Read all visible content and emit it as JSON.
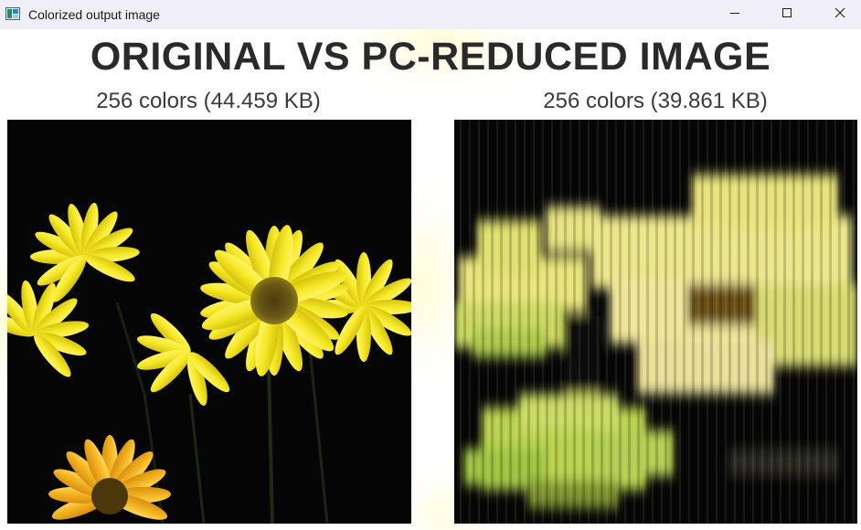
{
  "window": {
    "title": "Colorized output image",
    "icon": "app-image-icon",
    "controls": {
      "minimize_icon": "minimize-icon",
      "maximize_icon": "maximize-icon",
      "close_icon": "close-icon"
    }
  },
  "content": {
    "heading": "ORIGINAL VS PC-REDUCED IMAGE",
    "left_caption": "256 colors (44.459 KB)",
    "right_caption": "256 colors (39.861 KB)",
    "left_image": "original-flowers-image",
    "right_image": "pc-reduced-flowers-image"
  },
  "colors": {
    "titlebar": "#f0eef6",
    "heading_text": "#2a2a2a",
    "caption_text": "#3a3a3a",
    "image_background": "#050505",
    "petal_yellow": "#f2e21c",
    "petal_orange": "#f4b21e",
    "flower_center": "#5b4a12",
    "reduced_petal": "#e4e27a",
    "reduced_green": "#b8d24a"
  }
}
